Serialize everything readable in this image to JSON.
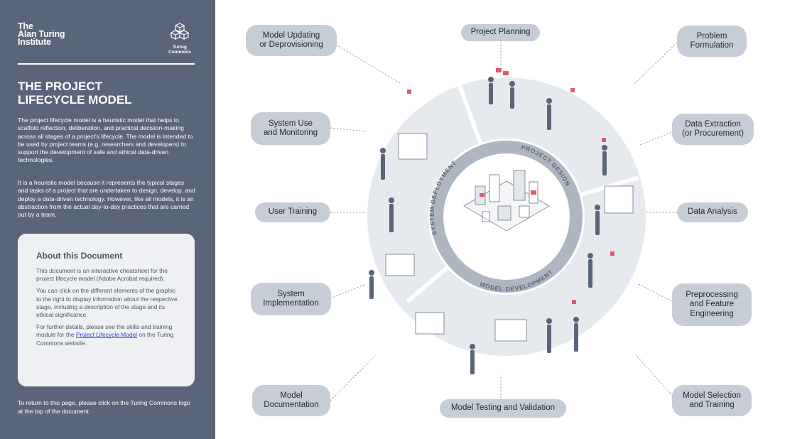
{
  "sidebar": {
    "logo_ati": [
      "The",
      "Alan Turing",
      "Institute"
    ],
    "logo_tc": "Turing Commons",
    "title_line1": "THE PROJECT",
    "title_line2": "LIFECYCLE MODEL",
    "para1": "The project lifecycle model is a heuristic model that helps to scaffold reflection, deliberation, and practical decision-making across all stages of a project’s lifecycle. The model is intended to be used by project teams (e.g. researchers and developers) to support the development of safe and ethical data-driven technologies.",
    "para2": "It is a heuristic model because it represents the typical stages and tasks of a project that are undertaken to design, develop, and deploy a data-driven technology. However, like all models, it is an abstraction from the actual day-to-day practices that are carried out by a team.",
    "about": {
      "heading": "About this Document",
      "p1": "This document is an interactive cheatsheet for the project lifecycle model (Adobe Acrobat required).",
      "p2": "You can click on the different elements of the graphic to the right to display information about the respective stage, including a description of the stage and its ethical significance.",
      "p3_before": "For further details, please see the skills and training module for the ",
      "p3_link": "Project Lifecycle Model",
      "p3_after": " on the Turing Commons website."
    },
    "footer": "To return to this page, please click on the Turing Commons logo at the top of the document."
  },
  "diagram": {
    "ring_labels": {
      "design": "PROJECT DESIGN",
      "development": "MODEL DEVELOPMENT",
      "deployment": "SYSTEM DEPLOYMENT"
    },
    "stages": {
      "project_planning": [
        "Project Planning"
      ],
      "problem_formulation": [
        "Problem",
        "Formulation"
      ],
      "data_extraction": [
        "Data Extraction",
        "(or Procurement)"
      ],
      "data_analysis": [
        "Data Analysis"
      ],
      "preprocessing": [
        "Preprocessing",
        "and Feature",
        "Engineering"
      ],
      "model_selection": [
        "Model Selection",
        "and Training"
      ],
      "model_testing": [
        "Model Testing and Validation"
      ],
      "model_documentation": [
        "Model",
        "Documentation"
      ],
      "system_implementation": [
        "System",
        "Implementation"
      ],
      "user_training": [
        "User Training"
      ],
      "system_use": [
        "System Use",
        "and Monitoring"
      ],
      "model_updating": [
        "Model Updating",
        "or Deprovisioning"
      ]
    },
    "colors": {
      "panel": "#5b6579",
      "pill": "#c7cdd6",
      "ring_outer": "#e6e9ee",
      "ring_band": "#aeb6c2",
      "accent": "#e05a6e"
    }
  }
}
